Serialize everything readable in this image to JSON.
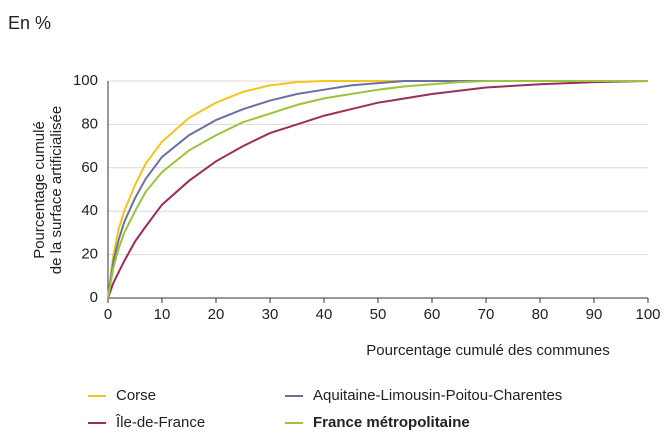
{
  "chart_data": {
    "type": "line",
    "subtitle": "En %",
    "y_label": [
      "Pourcentage cumulé",
      "de la surface artificialisée"
    ],
    "x_label": "Pourcentage cumulé des communes",
    "x": [
      0,
      1,
      2,
      3,
      5,
      7,
      10,
      15,
      20,
      25,
      30,
      35,
      40,
      45,
      50,
      55,
      60,
      65,
      70,
      80,
      90,
      100
    ],
    "series": [
      {
        "name": "Corse",
        "color": "#f2c51c",
        "values": [
          0,
          20,
          32,
          40,
          52,
          62,
          72,
          83,
          90,
          95,
          98,
          99.5,
          100,
          100,
          100,
          100,
          100,
          100,
          100,
          100,
          100,
          100
        ]
      },
      {
        "name": "Aquitaine-Limousin-Poitou-Charentes",
        "color": "#6b6fa8",
        "values": [
          0,
          17,
          27,
          35,
          46,
          55,
          65,
          75,
          82,
          87,
          91,
          94,
          96,
          98,
          99,
          100,
          100,
          100,
          100,
          100,
          100,
          100
        ]
      },
      {
        "name": "Île-de-France",
        "color": "#9b2d5c",
        "values": [
          0,
          7,
          12,
          17,
          26,
          33,
          43,
          54,
          63,
          70,
          76,
          80,
          84,
          87,
          90,
          92,
          94,
          95.5,
          97,
          98.5,
          99.5,
          100
        ]
      },
      {
        "name": "France métropolitaine",
        "color": "#9bc43c",
        "bold": true,
        "values": [
          0,
          14,
          23,
          30,
          40,
          49,
          58,
          68,
          75,
          81,
          85,
          89,
          92,
          94,
          96,
          97.5,
          98.5,
          99.5,
          100,
          100,
          100,
          100
        ]
      }
    ],
    "xlim": [
      0,
      100
    ],
    "xticks": [
      0,
      10,
      20,
      30,
      40,
      50,
      60,
      70,
      80,
      90,
      100
    ],
    "ylim": [
      0,
      100
    ],
    "yticks": [
      0,
      20,
      40,
      60,
      80,
      100
    ],
    "grid": true
  }
}
